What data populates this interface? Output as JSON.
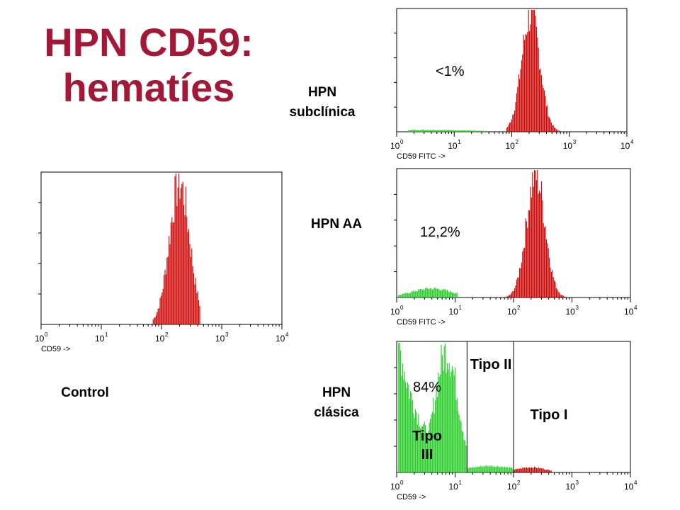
{
  "slide": {
    "title_line1": "HPN CD59:",
    "title_line2": "hematíes",
    "labels": {
      "control": "Control",
      "subclinica_l1": "HPN",
      "subclinica_l2": "subclínica",
      "aa": "HPN AA",
      "clasica_l1": "HPN",
      "clasica_l2": "clásica"
    },
    "colors": {
      "title": "#a31837",
      "normal": "#cc0000",
      "deficient": "#22cc22"
    }
  },
  "chart_data": [
    {
      "id": "control",
      "type": "histogram",
      "xscale": "log",
      "xlim": [
        1,
        10000
      ],
      "xlabel": "CD59 ->",
      "tick_labels": [
        {
          "base": "10",
          "exp": "0"
        },
        {
          "base": "10",
          "exp": "1"
        },
        {
          "base": "10",
          "exp": "2"
        },
        {
          "base": "10",
          "exp": "3"
        },
        {
          "base": "10",
          "exp": "4"
        }
      ],
      "series": [
        {
          "name": "normal",
          "color": "#cc0000",
          "log_center": 2.3,
          "log_sd": 0.17,
          "height": 0.93,
          "range": [
            1.85,
            2.65
          ]
        }
      ],
      "annotations": []
    },
    {
      "id": "subclinica",
      "type": "histogram",
      "xscale": "log",
      "xlim": [
        1,
        10000
      ],
      "xlabel": "CD59 FITC ->",
      "tick_labels": [
        {
          "base": "10",
          "exp": "0"
        },
        {
          "base": "10",
          "exp": "1"
        },
        {
          "base": "10",
          "exp": "2"
        },
        {
          "base": "10",
          "exp": "3"
        },
        {
          "base": "10",
          "exp": "4"
        }
      ],
      "series": [
        {
          "name": "normal",
          "color": "#cc0000",
          "log_center": 2.33,
          "log_sd": 0.16,
          "height": 0.95,
          "range": [
            1.9,
            2.85
          ]
        },
        {
          "name": "deficient",
          "color": "#22cc22",
          "log_center": 0.5,
          "log_sd": 0.8,
          "height": 0.015,
          "range": [
            0.2,
            1.6
          ]
        }
      ],
      "annotations": [
        {
          "text": "<1%"
        }
      ]
    },
    {
      "id": "aa",
      "type": "histogram",
      "xscale": "log",
      "xlim": [
        1,
        10000
      ],
      "xlabel": "CD59 FITC ->",
      "tick_labels": [
        {
          "base": "10",
          "exp": "0"
        },
        {
          "base": "10",
          "exp": "1"
        },
        {
          "base": "10",
          "exp": "2"
        },
        {
          "base": "10",
          "exp": "3"
        },
        {
          "base": "10",
          "exp": "4"
        }
      ],
      "series": [
        {
          "name": "normal",
          "color": "#cc0000",
          "log_center": 2.38,
          "log_sd": 0.16,
          "height": 0.95,
          "range": [
            1.85,
            2.95
          ]
        },
        {
          "name": "deficient",
          "color": "#22cc22",
          "log_center": 0.6,
          "log_sd": 0.35,
          "height": 0.07,
          "range": [
            0.02,
            1.05
          ]
        }
      ],
      "annotations": [
        {
          "text": "12,2%"
        }
      ]
    },
    {
      "id": "clasica",
      "type": "histogram",
      "xscale": "log",
      "xlim": [
        1,
        10000
      ],
      "xlabel": "CD59 ->",
      "tick_labels": [
        {
          "base": "10",
          "exp": "0"
        },
        {
          "base": "10",
          "exp": "1"
        },
        {
          "base": "10",
          "exp": "2"
        },
        {
          "base": "10",
          "exp": "3"
        },
        {
          "base": "10",
          "exp": "4"
        }
      ],
      "gates": [
        16,
        100
      ],
      "gate_labels": [
        "Tipo III",
        "Tipo II",
        "Tipo I"
      ],
      "series": [
        {
          "name": "tipo-iii",
          "color": "#22cc22",
          "log_center": 0.85,
          "log_sd": 0.2,
          "height": 0.92,
          "range": [
            0.02,
            1.2
          ],
          "tail": 0.13
        },
        {
          "name": "tipo-ii",
          "color": "#22cc22",
          "log_center": 1.6,
          "log_sd": 0.4,
          "height": 0.05,
          "range": [
            1.2,
            2.0
          ]
        },
        {
          "name": "tipo-i",
          "color": "#cc0000",
          "log_center": 2.3,
          "log_sd": 0.25,
          "height": 0.04,
          "range": [
            2.0,
            2.65
          ]
        }
      ],
      "annotations": [
        {
          "text": "84%"
        }
      ]
    }
  ]
}
